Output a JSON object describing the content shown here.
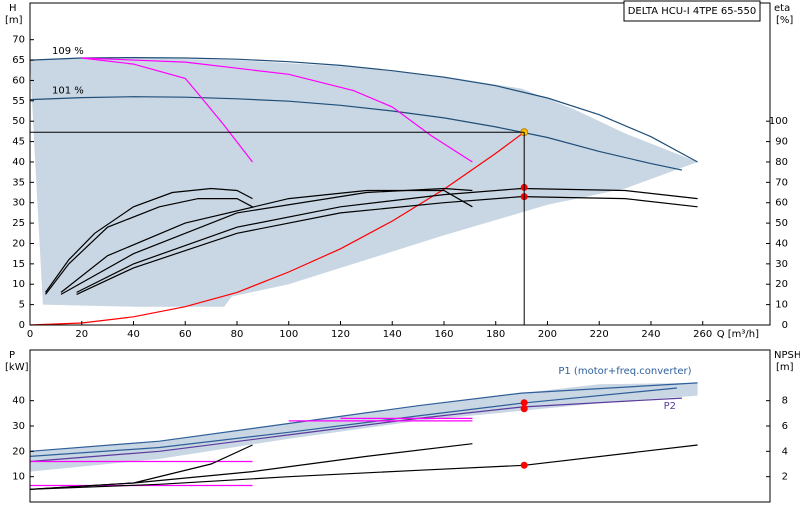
{
  "chart_data": [
    {
      "type": "line",
      "title": "DELTA HCU-I 4TPE 65-550",
      "ylabel": "H",
      "yunit": "[m]",
      "y2label": "eta",
      "y2unit": "[%]",
      "xlabel": "Q [m³/h]",
      "xlim": [
        0,
        286
      ],
      "xticks": [
        0,
        20,
        40,
        60,
        80,
        100,
        120,
        140,
        160,
        180,
        200,
        220,
        240,
        260
      ],
      "ylim": [
        0,
        79
      ],
      "yticks": [
        0,
        5,
        10,
        15,
        20,
        25,
        30,
        35,
        40,
        45,
        50,
        55,
        60,
        65,
        70
      ],
      "y2lim": [
        0,
        158
      ],
      "y2ticks": [
        0,
        10,
        20,
        30,
        40,
        50,
        60,
        70,
        80,
        90,
        100
      ],
      "series": [
        {
          "color": "#c9d6e3",
          "fill": true,
          "x": [
            0,
            20,
            40,
            80,
            120,
            160,
            190,
            210,
            230,
            258,
            230,
            200,
            160,
            120,
            100,
            78,
            75,
            40,
            5,
            2
          ],
          "values": [
            65,
            65.5,
            65.5,
            65,
            63.5,
            61,
            58,
            53,
            47,
            40,
            33.5,
            29.5,
            22,
            14,
            10,
            7,
            4.5,
            4.5,
            5,
            40
          ]
        },
        {
          "name": "109 %",
          "color": "#1f4e79",
          "x": [
            0,
            20,
            40,
            60,
            80,
            100,
            120,
            140,
            160,
            180,
            200,
            220,
            240,
            258
          ],
          "values": [
            65,
            65.5,
            65.6,
            65.5,
            65.2,
            64.6,
            63.7,
            62.4,
            60.8,
            58.7,
            55.7,
            51.6,
            46.2,
            40
          ]
        },
        {
          "name": "101 %",
          "color": "#1f4e79",
          "x": [
            0,
            20,
            40,
            60,
            80,
            100,
            120,
            140,
            160,
            180,
            200,
            220,
            240,
            252
          ],
          "values": [
            55.3,
            55.8,
            56,
            55.9,
            55.5,
            54.9,
            53.9,
            52.5,
            50.8,
            48.6,
            46,
            42.6,
            39.6,
            38
          ]
        },
        {
          "color": "#ff00ff",
          "x": [
            20,
            40,
            60,
            64,
            75,
            86
          ],
          "values": [
            65.5,
            64,
            60.5,
            57.5,
            49,
            40
          ]
        },
        {
          "color": "#ff00ff",
          "x": [
            20,
            60,
            100,
            125,
            140,
            155,
            171
          ],
          "values": [
            65.5,
            64.5,
            61.5,
            57.5,
            53.5,
            46.5,
            40
          ]
        },
        {
          "color": "#ff0000",
          "x": [
            0,
            20,
            40,
            60,
            80,
            100,
            120,
            140,
            160,
            180,
            191
          ],
          "values": [
            0,
            0.5,
            2,
            4.5,
            8,
            13,
            18.7,
            25.5,
            33.3,
            42.1,
            47.3
          ]
        },
        {
          "color": "#000000",
          "axis": "y2",
          "x": [
            6,
            15,
            25,
            40,
            55,
            70,
            80,
            86
          ],
          "values": [
            16,
            32,
            45,
            58,
            65,
            67,
            66,
            62
          ]
        },
        {
          "color": "#000000",
          "axis": "y2",
          "x": [
            6,
            15,
            30,
            50,
            65,
            80,
            86
          ],
          "values": [
            15,
            30,
            48,
            58,
            62,
            62,
            58
          ]
        },
        {
          "color": "#000000",
          "axis": "y2",
          "x": [
            12,
            40,
            80,
            130,
            160,
            171
          ],
          "values": [
            15,
            35,
            55,
            65,
            67,
            66
          ]
        },
        {
          "color": "#000000",
          "axis": "y2",
          "x": [
            12,
            30,
            60,
            100,
            130,
            160,
            171
          ],
          "values": [
            16,
            34,
            50,
            62,
            66,
            66,
            58
          ]
        },
        {
          "color": "#000000",
          "axis": "y2",
          "x": [
            18,
            40,
            80,
            120,
            160,
            190,
            230,
            258
          ],
          "values": [
            16,
            30,
            48,
            58,
            64,
            67,
            66,
            62
          ]
        },
        {
          "color": "#000000",
          "axis": "y2",
          "x": [
            18,
            40,
            80,
            120,
            160,
            190,
            230,
            258
          ],
          "values": [
            15,
            28,
            45,
            55,
            60,
            63,
            62,
            58
          ]
        },
        {
          "color": "#ff0000",
          "axis": "y2",
          "marker": "circle",
          "x": [
            191,
            191
          ],
          "values": [
            67.5,
            63
          ]
        },
        {
          "color": "#ffc000",
          "marker": "circle",
          "guide": true,
          "x": [
            191
          ],
          "values": [
            47.3
          ]
        }
      ]
    },
    {
      "type": "line",
      "ylabel": "P",
      "yunit": "[kW]",
      "y2label": "NPSH",
      "y2unit": "[m]",
      "xlim": [
        0,
        286
      ],
      "ylim": [
        0,
        60
      ],
      "yticks": [
        10,
        20,
        30,
        40
      ],
      "y2lim": [
        0,
        12
      ],
      "y2ticks": [
        2,
        4,
        6,
        8
      ],
      "series": [
        {
          "color": "#c9d6e3",
          "fill": true,
          "x": [
            0,
            50,
            100,
            150,
            190,
            220,
            258,
            258,
            220,
            190,
            150,
            100,
            50,
            0
          ],
          "values": [
            20,
            24,
            31,
            38,
            43,
            46.5,
            47,
            42,
            39,
            36,
            32,
            25,
            17,
            12
          ]
        },
        {
          "name": "P1 (motor+freq.converter)",
          "color": "#2e5f9a",
          "x": [
            0,
            50,
            100,
            150,
            190,
            258
          ],
          "values": [
            20,
            24,
            31,
            38,
            43,
            47
          ]
        },
        {
          "color": "#2e5f9a",
          "x": [
            0,
            50,
            100,
            150,
            190,
            250
          ],
          "values": [
            18,
            21.5,
            27.5,
            34,
            39,
            45
          ]
        },
        {
          "name": "P2",
          "color": "#5a3c9e",
          "x": [
            0,
            50,
            100,
            150,
            190,
            252
          ],
          "values": [
            16,
            20,
            26.5,
            33,
            37.5,
            41
          ]
        },
        {
          "color": "#ff00ff",
          "x": [
            0,
            86
          ],
          "values": [
            16,
            16
          ]
        },
        {
          "color": "#ff00ff",
          "x": [
            0,
            86
          ],
          "values": [
            6.5,
            6.5
          ]
        },
        {
          "color": "#ff00ff",
          "x": [
            120,
            171
          ],
          "values": [
            33,
            33
          ]
        },
        {
          "color": "#ff00ff",
          "x": [
            100,
            171
          ],
          "values": [
            32,
            32
          ]
        },
        {
          "color": "#000000",
          "axis": "y2",
          "x": [
            0,
            50,
            100,
            150,
            191,
            258
          ],
          "values": [
            1,
            1.4,
            2,
            2.5,
            2.9,
            4.5
          ]
        },
        {
          "color": "#000000",
          "axis": "y2",
          "x": [
            0,
            40,
            86,
            130,
            171
          ],
          "values": [
            1,
            1.5,
            2.4,
            3.6,
            4.6
          ]
        },
        {
          "color": "#000000",
          "axis": "y2",
          "x": [
            0,
            40,
            70,
            86
          ],
          "values": [
            1,
            1.5,
            3,
            4.5
          ]
        },
        {
          "color": "#ff0000",
          "marker": "circle",
          "x": [
            191,
            191
          ],
          "values": [
            39.2,
            36.8
          ]
        },
        {
          "color": "#ff0000",
          "axis": "y2",
          "marker": "circle",
          "x": [
            191
          ],
          "values": [
            2.9
          ]
        }
      ]
    }
  ]
}
